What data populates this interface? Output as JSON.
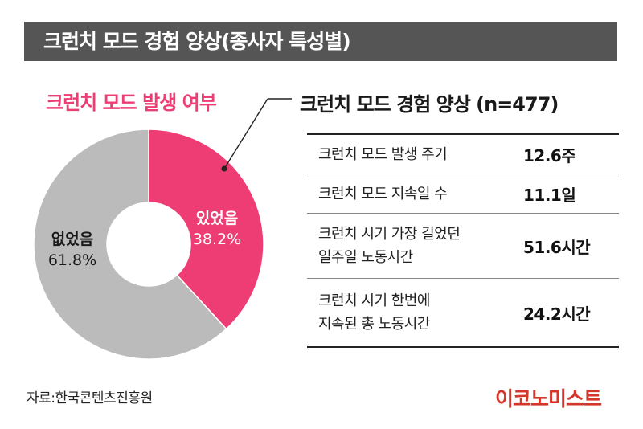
{
  "header": {
    "title": "크런치 모드 경험 양상(종사자 특성별)"
  },
  "chart_data": {
    "type": "pie",
    "subtitle": "크런치 모드 발생 여부",
    "slices": [
      {
        "label": "있었음",
        "value": 38.2,
        "value_label": "38.2%",
        "color": "#ee3d74"
      },
      {
        "label": "없었음",
        "value": 61.8,
        "value_label": "61.8%",
        "color": "#bbbbbb"
      }
    ],
    "donut": true
  },
  "stats": {
    "title": "크런치 모드 경험 양상 (n=477)",
    "rows": [
      {
        "label_lines": [
          "크런치 모드 발생 주기"
        ],
        "value": "12.6주"
      },
      {
        "label_lines": [
          "크런치 모드 지속일 수"
        ],
        "value": "11.1일"
      },
      {
        "label_lines": [
          "크런치 시기 가장 길었던",
          "일주일 노동시간"
        ],
        "value": "51.6시간"
      },
      {
        "label_lines": [
          "크런치 시기 한번에",
          "지속된 총 노동시간"
        ],
        "value": "24.2시간"
      }
    ]
  },
  "footer": {
    "source": "자료:한국콘텐츠진흥원",
    "logo": "이코노미스트"
  }
}
